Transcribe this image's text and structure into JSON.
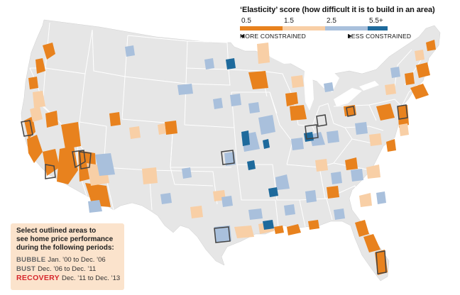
{
  "legend": {
    "title": "‘Elasticity’ score (how difficult it is to build in an area)",
    "ticks": [
      "0.5",
      "1.5",
      "2.5",
      "5.5+"
    ],
    "more_label": "MORE CONSTRAINED",
    "less_label": "LESS CONSTRAINED",
    "colors": [
      "#e8821e",
      "#f8cfa6",
      "#a9c0dc",
      "#1e6a9c"
    ]
  },
  "info": {
    "heading_lines": [
      "Select outlined areas to",
      "see home price performance",
      "during the following periods:"
    ],
    "periods": [
      {
        "name": "BUBBLE",
        "range": "Jan. ’00 to Dec. ’06"
      },
      {
        "name": "BUST",
        "range": "Dec. ’06 to Dec. ’11"
      },
      {
        "name": "RECOVERY",
        "range": "Dec. ’11 to Dec. ’13"
      }
    ]
  },
  "colors": {
    "land": "#e6e6e6",
    "state_border": "#ffffff",
    "water": "#ffffff",
    "outline": "#444444"
  }
}
